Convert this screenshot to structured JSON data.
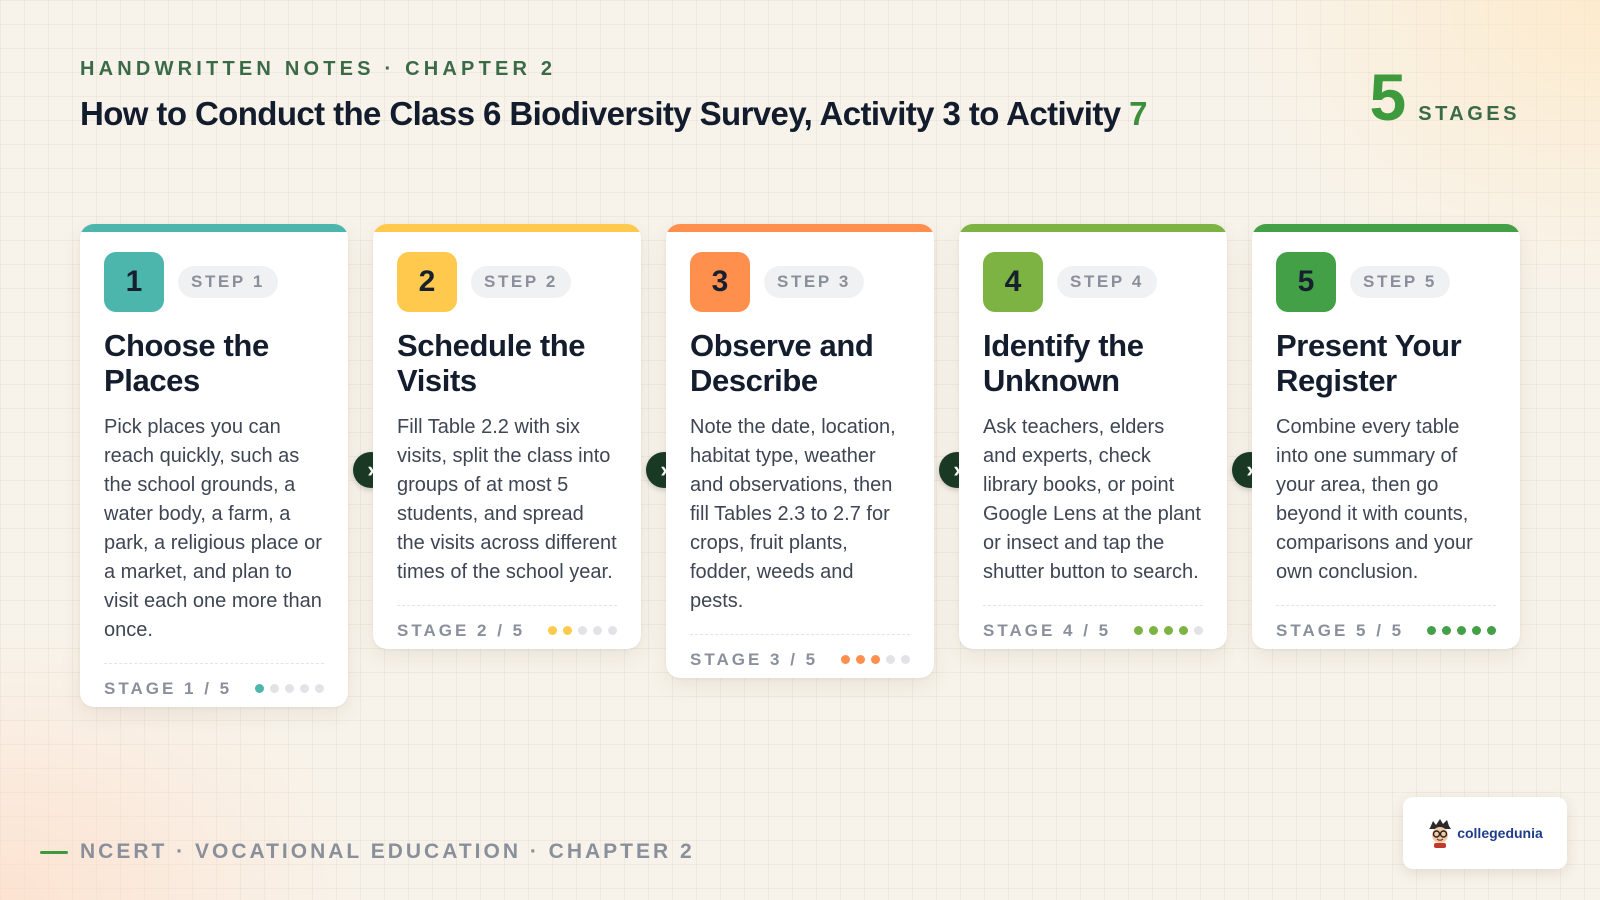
{
  "header": {
    "eyebrow": "HANDWRITTEN NOTES · CHAPTER 2",
    "title_main": "How to Conduct the Class 6 Biodiversity Survey, Activity 3 to Activity",
    "title_accent": "7",
    "stage_count": "5",
    "stage_count_label": "STAGES"
  },
  "steps": [
    {
      "number": "1",
      "pill": "STEP 1",
      "title": "Choose the Places",
      "description": "Pick places you can reach quickly, such as the school grounds, a water body, a farm, a park, a religious place or a market, and plan to visit each one more than once.",
      "stage_label": "STAGE 1 / 5",
      "progress": 1,
      "color": "#4db6ac"
    },
    {
      "number": "2",
      "pill": "STEP 2",
      "title": "Schedule the Visits",
      "description": "Fill Table 2.2 with six visits, split the class into groups of at most 5 students, and spread the visits across different times of the school year.",
      "stage_label": "STAGE 2 / 5",
      "progress": 2,
      "color": "#ffc94d"
    },
    {
      "number": "3",
      "pill": "STEP 3",
      "title": "Observe and Describe",
      "description": "Note the date, location, habitat type, weather and observations, then fill Tables 2.3 to 2.7 for crops, fruit plants, fodder, weeds and pests.",
      "stage_label": "STAGE 3 / 5",
      "progress": 3,
      "color": "#ff8f4d"
    },
    {
      "number": "4",
      "pill": "STEP 4",
      "title": "Identify the Unknown",
      "description": "Ask teachers, elders and experts, check library books, or point Google Lens at the plant or insect and tap the shutter button to search.",
      "stage_label": "STAGE 4 / 5",
      "progress": 4,
      "color": "#7cb342"
    },
    {
      "number": "5",
      "pill": "STEP 5",
      "title": "Present Your Register",
      "description": "Combine every table into one summary of your area, then go beyond it with counts, comparisons and your own conclusion.",
      "stage_label": "STAGE 5 / 5",
      "progress": 5,
      "color": "#43a047"
    }
  ],
  "arrow_icon": "chevron-right-icon",
  "footer": {
    "text": "NCERT · VOCATIONAL EDUCATION · CHAPTER 2"
  },
  "brand": {
    "name": "collegedunia",
    "icon": "mascot-logo"
  }
}
